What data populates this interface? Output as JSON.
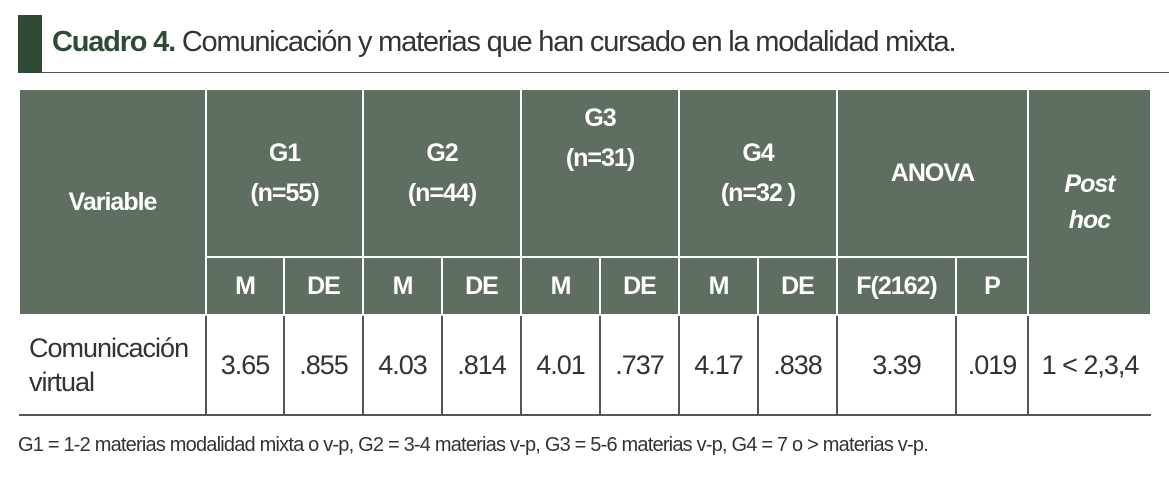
{
  "title": {
    "label": "Cuadro 4.",
    "text": "Comunicación y materias que han cursado en la modalidad mixta."
  },
  "table": {
    "header": {
      "variable": "Variable",
      "groups": [
        {
          "name": "G1",
          "n": "(n=55)"
        },
        {
          "name": "G2",
          "n": "(n=44)"
        },
        {
          "name": "G3",
          "n": "(n=31)"
        },
        {
          "name": "G4",
          "n": "(n=32 )"
        }
      ],
      "anova": "ANOVA",
      "post_hoc": "Post hoc",
      "subheaders": [
        "M",
        "DE",
        "M",
        "DE",
        "M",
        "DE",
        "M",
        "DE",
        "F(2162)",
        "P"
      ]
    },
    "rows": [
      [
        "Comunicación virtual",
        "3.65",
        ".855",
        "4.03",
        ".814",
        "4.01",
        ".737",
        "4.17",
        ".838",
        "3.39",
        ".019",
        "1 < 2,3,4"
      ]
    ]
  },
  "footnote": "G1 = 1-2 materias modalidad mixta o v-p, G2 = 3-4 materias v-p, G3 = 5-6 materias v-p, G4 = 7 o > materias v-p."
}
